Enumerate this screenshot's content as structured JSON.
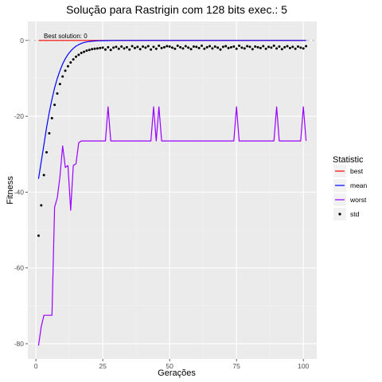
{
  "chart_data": {
    "type": "line",
    "title": "Solução para Rastrigin com 128 bits exec.: 5",
    "xlabel": "Gerações",
    "ylabel": "Fitness",
    "xlim": [
      -3,
      105
    ],
    "ylim": [
      -84,
      5
    ],
    "x_ticks": [
      0,
      25,
      50,
      75,
      100
    ],
    "y_ticks": [
      0,
      -20,
      -40,
      -60,
      -80
    ],
    "grid": true,
    "annotation": {
      "text": "Best solution: 0",
      "x": 1,
      "y": 0
    },
    "reference_line": {
      "y": 0,
      "style": "dashed",
      "color": "#bdbdbd"
    },
    "legend": {
      "title": "Statistic",
      "position": "right"
    },
    "series": [
      {
        "name": "best",
        "kind": "line",
        "color": "#ff0000",
        "x": [
          1,
          101
        ],
        "values": [
          0,
          0
        ]
      },
      {
        "name": "mean",
        "kind": "line",
        "color": "#0000ff",
        "x": [
          1,
          2,
          3,
          4,
          5,
          6,
          7,
          8,
          9,
          10,
          11,
          12,
          13,
          14,
          15,
          16,
          17,
          18,
          19,
          20,
          21,
          22,
          23,
          25,
          30,
          35,
          40,
          50,
          60,
          70,
          80,
          90,
          101
        ],
        "values": [
          -36.5,
          -32,
          -27.5,
          -23,
          -19,
          -15.5,
          -12.5,
          -10,
          -8,
          -6.2,
          -4.8,
          -3.7,
          -2.8,
          -2.1,
          -1.5,
          -1.1,
          -0.8,
          -0.55,
          -0.4,
          -0.3,
          -0.2,
          -0.15,
          -0.1,
          -0.05,
          0,
          0,
          0,
          0,
          0,
          0,
          0,
          0,
          0
        ]
      },
      {
        "name": "worst",
        "kind": "line",
        "color": "#9900ff",
        "x": [
          1,
          2,
          3,
          4,
          5,
          6,
          7,
          8,
          9,
          10,
          11,
          12,
          13,
          14,
          15,
          16,
          17,
          18,
          19,
          20,
          26,
          27,
          28,
          43,
          44,
          45,
          46,
          47,
          74,
          75,
          76,
          89,
          90,
          91,
          99,
          100,
          101
        ],
        "values": [
          -80.5,
          -75.5,
          -72.5,
          -72.5,
          -72.5,
          -72.5,
          -44,
          -41.5,
          -36,
          -27.8,
          -33.5,
          -33,
          -44.8,
          -33,
          -32.5,
          -27,
          -26.5,
          -26.5,
          -26.5,
          -26.5,
          -26.5,
          -17.5,
          -26.5,
          -26.5,
          -17.5,
          -26.5,
          -17.5,
          -26.5,
          -26.5,
          -17.5,
          -26.5,
          -26.5,
          -17.5,
          -26.5,
          -26.5,
          -17.5,
          -26.5
        ]
      },
      {
        "name": "std",
        "kind": "points",
        "color": "#000000",
        "x": [
          1,
          2,
          3,
          4,
          5,
          6,
          7,
          8,
          9,
          10,
          11,
          12,
          13,
          14,
          15,
          16,
          17,
          18,
          19,
          20,
          21,
          22,
          23,
          24,
          25,
          26,
          27,
          28,
          29,
          30,
          31,
          32,
          33,
          34,
          35,
          36,
          37,
          38,
          39,
          40,
          41,
          42,
          43,
          44,
          45,
          46,
          47,
          48,
          49,
          50,
          51,
          52,
          53,
          54,
          55,
          56,
          57,
          58,
          59,
          60,
          61,
          62,
          63,
          64,
          65,
          66,
          67,
          68,
          69,
          70,
          71,
          72,
          73,
          74,
          75,
          76,
          77,
          78,
          79,
          80,
          81,
          82,
          83,
          84,
          85,
          86,
          87,
          88,
          89,
          90,
          91,
          92,
          93,
          94,
          95,
          96,
          97,
          98,
          99,
          100,
          101
        ],
        "values": [
          -51.5,
          -43.5,
          -35.5,
          -29.5,
          -24.5,
          -20.5,
          -17,
          -14,
          -11.5,
          -9.5,
          -8,
          -6.8,
          -5.8,
          -5,
          -4.3,
          -3.8,
          -3.3,
          -3,
          -2.7,
          -2.5,
          -2.3,
          -2.2,
          -2.1,
          -2,
          -1.9,
          -2.4,
          -1.8,
          -2.5,
          -1.9,
          -1.7,
          -2.2,
          -1.6,
          -2.1,
          -1.8,
          -2.4,
          -1.5,
          -2,
          -1.7,
          -2.3,
          -1.6,
          -1.9,
          -1.5,
          -2.4,
          -1.7,
          -2.2,
          -1.4,
          -2,
          -1.8,
          -1.5,
          -1.6,
          -1.9,
          -2.2,
          -1.4,
          -1.8,
          -2.1,
          -1.5,
          -1.9,
          -2.3,
          -1.6,
          -1.7,
          -2,
          -1.4,
          -2.2,
          -1.8,
          -1.5,
          -2.1,
          -1.6,
          -1.9,
          -2.4,
          -1.7,
          -1.5,
          -2,
          -1.8,
          -1.6,
          -2.2,
          -1.4,
          -1.9,
          -2.1,
          -1.5,
          -1.7,
          -2.3,
          -1.6,
          -1.8,
          -2,
          -1.5,
          -2.2,
          -1.7,
          -1.9,
          -1.4,
          -2.1,
          -1.6,
          -2.3,
          -1.8,
          -1.5,
          -2,
          -1.7,
          -2.2,
          -1.6,
          -1.9,
          -2.1,
          -1.5
        ]
      }
    ]
  }
}
